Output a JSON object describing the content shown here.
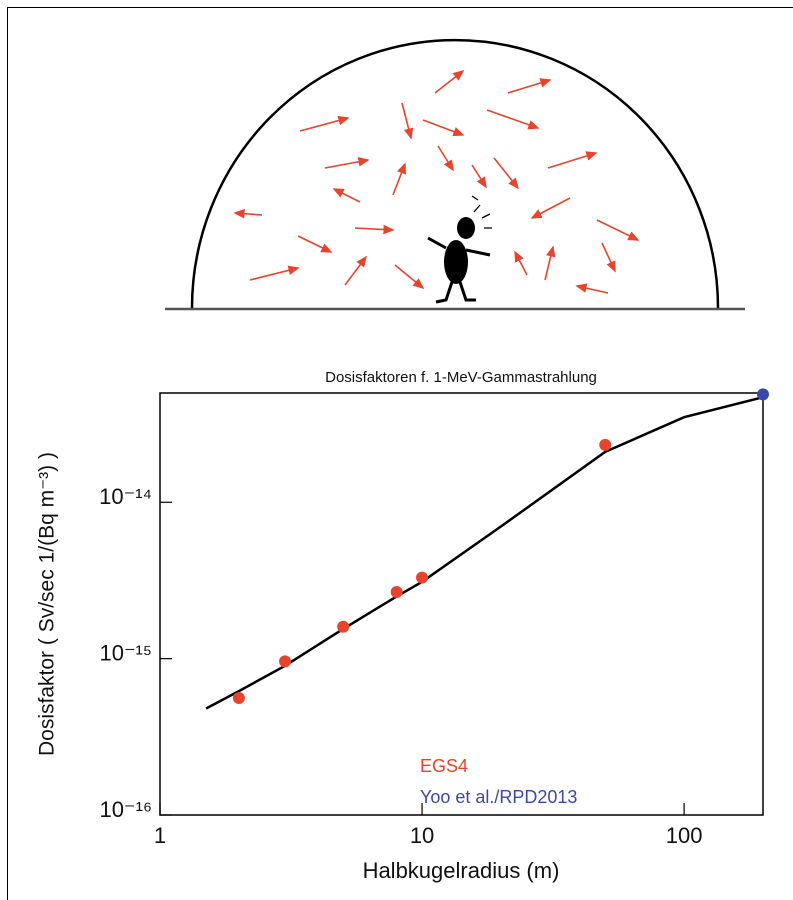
{
  "chart_data": {
    "type": "scatter",
    "title": "Dosisfaktoren f. 1-MeV-Gammastrahlung",
    "x_label": "Halbkugelradius (m)",
    "y_label": "Dosisfaktor ( Sv/sec 1/(Bq m⁻³) )",
    "log_x": true,
    "log_y": true,
    "xlim": [
      1,
      200
    ],
    "ylim": [
      1e-16,
      5e-14
    ],
    "xticks": [
      1,
      10,
      100
    ],
    "yticks": [
      {
        "value": 1e-16,
        "label": "10⁻¹⁶"
      },
      {
        "value": 1e-15,
        "label": "10⁻¹⁵"
      },
      {
        "value": 1e-14,
        "label": "10⁻¹⁴"
      }
    ],
    "series": [
      {
        "color": "#000000",
        "x": [
          1.5,
          2,
          3,
          5,
          8,
          10,
          20,
          50,
          100,
          200
        ],
        "values": [
          4.8e-16,
          6.2e-16,
          9e-16,
          1.55e-15,
          2.5e-15,
          3.1e-15,
          7e-15,
          2.1e-14,
          3.5e-14,
          4.7e-14
        ]
      },
      {
        "name": "EGS4",
        "color": "#e8432c",
        "x": [
          2,
          3,
          5,
          8,
          10,
          50
        ],
        "values": [
          5.6e-16,
          9.6e-16,
          1.6e-15,
          2.67e-15,
          3.3e-15,
          2.33e-14
        ]
      },
      {
        "name": "Yoo et al./RPD2013",
        "color": "#3a49a8",
        "x": [
          200
        ],
        "values": [
          4.9e-14
        ]
      }
    ]
  }
}
